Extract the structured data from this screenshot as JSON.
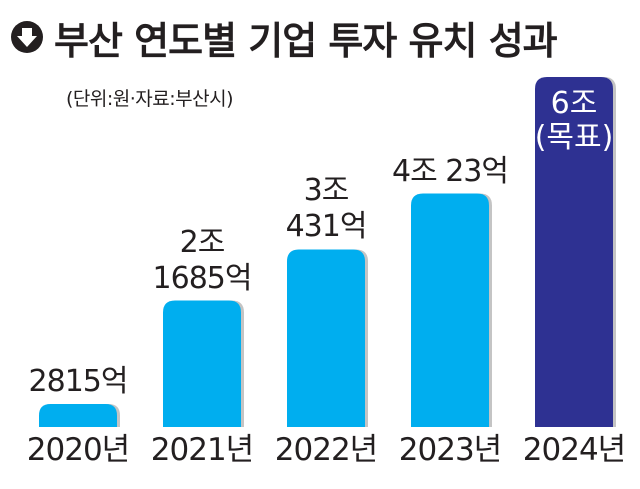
{
  "header": {
    "icon": "down-arrow-circle-icon",
    "title": "부산 연도별 기업 투자 유치 성과",
    "subtitle": "(단위:원·자료:부산시)"
  },
  "colors": {
    "bar": "#00aeef",
    "target_bar": "#2e3192",
    "shadow": "#9c9c9c",
    "text": "#231f20"
  },
  "chart_data": {
    "type": "bar",
    "title": "부산 연도별 기업 투자 유치 성과",
    "subtitle": "(단위:원·자료:부산시)",
    "xlabel": "",
    "ylabel": "",
    "unit": "억 원",
    "ylim": [
      0,
      60000
    ],
    "grid": false,
    "legend": "none",
    "categories": [
      "2020년",
      "2021년",
      "2022년",
      "2023년",
      "2024년"
    ],
    "values": [
      2815,
      21685,
      30431,
      40023,
      60000
    ],
    "target_flags": [
      false,
      false,
      false,
      false,
      true
    ],
    "labels": [
      [
        "2815억"
      ],
      [
        "2조",
        "1685억"
      ],
      [
        "3조",
        "431억"
      ],
      [
        "4조 23억"
      ],
      [
        "6조",
        "(목표)"
      ]
    ]
  }
}
